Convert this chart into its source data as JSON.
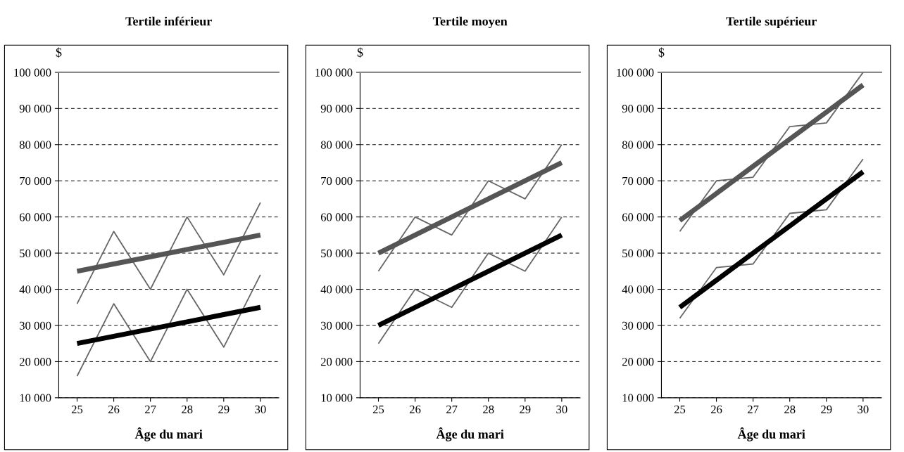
{
  "chart_data": [
    {
      "type": "line",
      "title": "Tertile inférieur",
      "xlabel": "Âge du mari",
      "ylabel": "$",
      "x": [
        25,
        26,
        27,
        28,
        29,
        30
      ],
      "xlim": [
        24.5,
        30.5
      ],
      "xticks": [
        25,
        26,
        27,
        28,
        29,
        30
      ],
      "ylim": [
        10000,
        100000
      ],
      "yticks": [
        {
          "value": 10000,
          "label": "10 000"
        },
        {
          "value": 20000,
          "label": "20 000"
        },
        {
          "value": 30000,
          "label": "30 000"
        },
        {
          "value": 40000,
          "label": "40 000"
        },
        {
          "value": 50000,
          "label": "50 000"
        },
        {
          "value": 60000,
          "label": "60 000"
        },
        {
          "value": 70000,
          "label": "70 000"
        },
        {
          "value": 80000,
          "label": "80 000"
        },
        {
          "value": 90000,
          "label": "90 000"
        },
        {
          "value": 100000,
          "label": "100 000"
        }
      ],
      "grid": "y",
      "series": [
        {
          "color": "#666666",
          "values": [
            36000,
            56000,
            40000,
            60000,
            44000,
            64000
          ]
        },
        {
          "color": "#666666",
          "values": [
            16000,
            36000,
            20000,
            40000,
            24000,
            44000
          ]
        },
        {
          "color": "#555555",
          "values": [
            45000,
            47000,
            49000,
            51000,
            53000,
            55000
          ]
        },
        {
          "color": "#000000",
          "values": [
            25000,
            27000,
            29000,
            31000,
            33000,
            35000
          ]
        }
      ]
    },
    {
      "type": "line",
      "title": "Tertile moyen",
      "xlabel": "Âge du mari",
      "ylabel": "$",
      "x": [
        25,
        26,
        27,
        28,
        29,
        30
      ],
      "xlim": [
        24.5,
        30.5
      ],
      "xticks": [
        25,
        26,
        27,
        28,
        29,
        30
      ],
      "ylim": [
        10000,
        100000
      ],
      "yticks": [
        {
          "value": 10000,
          "label": "10 000"
        },
        {
          "value": 20000,
          "label": "20 000"
        },
        {
          "value": 30000,
          "label": "30 000"
        },
        {
          "value": 40000,
          "label": "40 000"
        },
        {
          "value": 50000,
          "label": "50 000"
        },
        {
          "value": 60000,
          "label": "60 000"
        },
        {
          "value": 70000,
          "label": "70 000"
        },
        {
          "value": 80000,
          "label": "80 000"
        },
        {
          "value": 90000,
          "label": "90 000"
        },
        {
          "value": 100000,
          "label": "100 000"
        }
      ],
      "grid": "y",
      "series": [
        {
          "color": "#666666",
          "values": [
            45000,
            60000,
            55000,
            70000,
            65000,
            80000
          ]
        },
        {
          "color": "#666666",
          "values": [
            25000,
            40000,
            35000,
            50000,
            45000,
            60000
          ]
        },
        {
          "color": "#555555",
          "values": [
            50000,
            55000,
            60000,
            65000,
            70000,
            75000
          ]
        },
        {
          "color": "#000000",
          "values": [
            30000,
            35000,
            40000,
            45000,
            50000,
            55000
          ]
        }
      ]
    },
    {
      "type": "line",
      "title": "Tertile supérieur",
      "xlabel": "Âge du mari",
      "ylabel": "$",
      "x": [
        25,
        26,
        27,
        28,
        29,
        30
      ],
      "xlim": [
        24.5,
        30.5
      ],
      "xticks": [
        25,
        26,
        27,
        28,
        29,
        30
      ],
      "ylim": [
        10000,
        100000
      ],
      "yticks": [
        {
          "value": 10000,
          "label": "10 000"
        },
        {
          "value": 20000,
          "label": "20 000"
        },
        {
          "value": 30000,
          "label": "30 000"
        },
        {
          "value": 40000,
          "label": "40 000"
        },
        {
          "value": 50000,
          "label": "50 000"
        },
        {
          "value": 60000,
          "label": "60 000"
        },
        {
          "value": 70000,
          "label": "70 000"
        },
        {
          "value": 80000,
          "label": "80 000"
        },
        {
          "value": 90000,
          "label": "90 000"
        },
        {
          "value": 100000,
          "label": "100 000"
        }
      ],
      "grid": "y",
      "series": [
        {
          "color": "#666666",
          "values": [
            56000,
            70000,
            71000,
            85000,
            86000,
            100000
          ]
        },
        {
          "color": "#666666",
          "values": [
            32000,
            46000,
            47000,
            61000,
            62000,
            76000
          ]
        },
        {
          "color": "#555555",
          "values": [
            59000,
            66500,
            74000,
            81500,
            89000,
            96500
          ]
        },
        {
          "color": "#000000",
          "values": [
            35000,
            42500,
            50000,
            57500,
            65000,
            72500
          ]
        }
      ]
    }
  ]
}
